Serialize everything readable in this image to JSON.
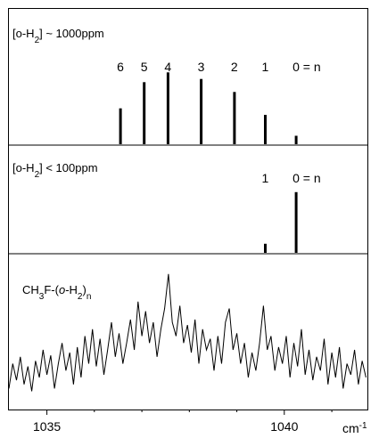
{
  "chart_data": [
    {
      "type": "bar",
      "panel": "top",
      "label_main": "[o-H",
      "label_sub": "2",
      "label_rest": "] ~ 1000ppm",
      "n_labels": [
        "6",
        "5",
        "4",
        "3",
        "2",
        "1",
        "0 = n"
      ],
      "x": [
        1036.55,
        1037.05,
        1037.55,
        1038.25,
        1038.95,
        1039.6,
        1040.25
      ],
      "values": [
        0.55,
        0.95,
        1.1,
        1.0,
        0.8,
        0.45,
        0.13
      ],
      "xlim": [
        1034.2,
        1041.75
      ],
      "ylim": [
        0,
        1.2
      ],
      "grid": false
    },
    {
      "type": "bar",
      "panel": "middle",
      "label_main": "[o-H",
      "label_sub": "2",
      "label_rest": "] < 100ppm",
      "n_labels": [
        "1",
        "0 = n"
      ],
      "x": [
        1039.6,
        1040.25
      ],
      "values": [
        0.15,
        1.0
      ],
      "xlim": [
        1034.2,
        1041.75
      ],
      "ylim": [
        0,
        1.1
      ],
      "grid": false
    },
    {
      "type": "line",
      "panel": "bottom",
      "label_parts": [
        "CH",
        "3",
        "F-(",
        "o",
        "-H",
        "2",
        ")",
        "n"
      ],
      "xlabel_unit": "cm",
      "xlabel_exp": "-1",
      "xticks": [
        1035,
        1040
      ],
      "xtick_labels": [
        "1035",
        "1040"
      ],
      "xlim": [
        1034.2,
        1041.75
      ],
      "ylim": [
        0,
        1
      ],
      "grid": false,
      "x": [
        1034.2,
        1034.28,
        1034.36,
        1034.44,
        1034.52,
        1034.6,
        1034.68,
        1034.76,
        1034.84,
        1034.92,
        1035.0,
        1035.08,
        1035.16,
        1035.24,
        1035.32,
        1035.4,
        1035.48,
        1035.56,
        1035.64,
        1035.72,
        1035.8,
        1035.88,
        1035.96,
        1036.04,
        1036.12,
        1036.2,
        1036.28,
        1036.36,
        1036.44,
        1036.52,
        1036.6,
        1036.68,
        1036.76,
        1036.84,
        1036.92,
        1037.0,
        1037.08,
        1037.16,
        1037.24,
        1037.32,
        1037.4,
        1037.48,
        1037.56,
        1037.64,
        1037.72,
        1037.8,
        1037.88,
        1037.96,
        1038.04,
        1038.12,
        1038.2,
        1038.28,
        1038.36,
        1038.44,
        1038.52,
        1038.6,
        1038.68,
        1038.76,
        1038.84,
        1038.92,
        1039.0,
        1039.08,
        1039.16,
        1039.24,
        1039.32,
        1039.4,
        1039.48,
        1039.56,
        1039.64,
        1039.72,
        1039.8,
        1039.88,
        1039.96,
        1040.04,
        1040.12,
        1040.2,
        1040.28,
        1040.36,
        1040.44,
        1040.52,
        1040.6,
        1040.68,
        1040.76,
        1040.84,
        1040.92,
        1041.0,
        1041.08,
        1041.16,
        1041.24,
        1041.32,
        1041.4,
        1041.48,
        1041.56,
        1041.64,
        1041.72
      ],
      "y": [
        0.12,
        0.3,
        0.18,
        0.35,
        0.15,
        0.28,
        0.1,
        0.32,
        0.2,
        0.4,
        0.22,
        0.36,
        0.12,
        0.3,
        0.45,
        0.25,
        0.38,
        0.15,
        0.42,
        0.2,
        0.5,
        0.3,
        0.55,
        0.28,
        0.48,
        0.22,
        0.4,
        0.6,
        0.35,
        0.52,
        0.3,
        0.45,
        0.62,
        0.4,
        0.75,
        0.5,
        0.68,
        0.45,
        0.6,
        0.35,
        0.55,
        0.7,
        0.95,
        0.6,
        0.5,
        0.72,
        0.45,
        0.58,
        0.38,
        0.62,
        0.3,
        0.55,
        0.4,
        0.48,
        0.25,
        0.5,
        0.3,
        0.6,
        0.7,
        0.4,
        0.52,
        0.3,
        0.45,
        0.2,
        0.38,
        0.25,
        0.45,
        0.72,
        0.4,
        0.5,
        0.25,
        0.42,
        0.3,
        0.5,
        0.2,
        0.45,
        0.28,
        0.55,
        0.22,
        0.4,
        0.18,
        0.35,
        0.25,
        0.48,
        0.15,
        0.38,
        0.2,
        0.42,
        0.12,
        0.3,
        0.22,
        0.4,
        0.15,
        0.32,
        0.2
      ]
    }
  ]
}
